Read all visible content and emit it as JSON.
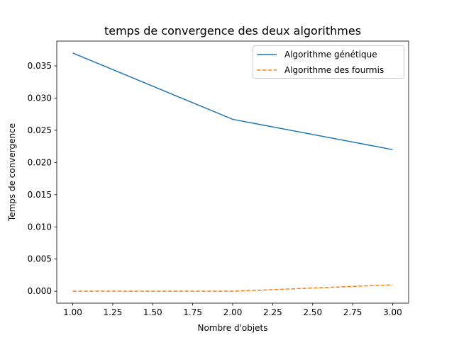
{
  "chart_data": {
    "type": "line",
    "title": "temps de convergence des deux algorithmes",
    "xlabel": "Nombre d'objets",
    "ylabel": "Temps de convergence",
    "xlim": [
      0.9,
      3.1
    ],
    "ylim": [
      -0.00185,
      0.03885
    ],
    "x_ticks": [
      1.0,
      1.25,
      1.5,
      1.75,
      2.0,
      2.25,
      2.5,
      2.75,
      3.0
    ],
    "x_tick_labels": [
      "1.00",
      "1.25",
      "1.50",
      "1.75",
      "2.00",
      "2.25",
      "2.50",
      "2.75",
      "3.00"
    ],
    "y_ticks": [
      0.0,
      0.005,
      0.01,
      0.015,
      0.02,
      0.025,
      0.03,
      0.035
    ],
    "y_tick_labels": [
      "0.000",
      "0.005",
      "0.010",
      "0.015",
      "0.020",
      "0.025",
      "0.030",
      "0.035"
    ],
    "grid": false,
    "legend_position": "top-right",
    "x": [
      1,
      2,
      3
    ],
    "series": [
      {
        "name": "Algorithme génétique",
        "values": [
          0.037,
          0.0267,
          0.022
        ],
        "color": "#1f77b4",
        "style": "solid"
      },
      {
        "name": "Algorithme des fourmis",
        "values": [
          0.0,
          0.0,
          0.001
        ],
        "color": "#ff7f0e",
        "style": "dashed"
      }
    ]
  }
}
